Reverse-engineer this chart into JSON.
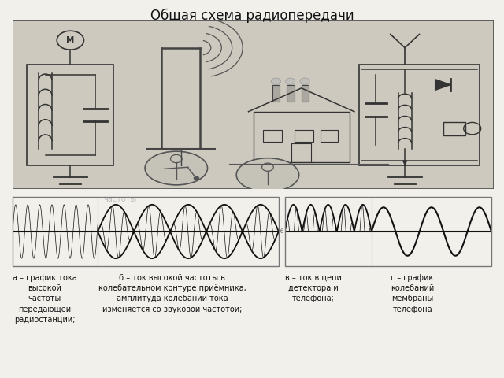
{
  "title": "Общая схема радиопередачи",
  "title_fontsize": 12,
  "bg_color": "#f0efec",
  "top_panel_color": "#d8d5cc",
  "bottom_left_color": "#d5d2ca",
  "bottom_right_color": "#d8d5cc",
  "wave_color": "#111111",
  "caption_a": "а – график тока\nвысокой\nчастоты\nпередающей\nрадиостанции;",
  "caption_b": "б – ток высокой частоты в\nколебательном контуре приёмника,\nамплитуда колебаний тока\nизменяется со звуковой частотой;",
  "caption_v": "в – ток в цепи\nдетектора и\nтелефона;",
  "caption_g": "г – график\nколебаний\nмембраны\nтелефона",
  "caption_fontsize": 7.0,
  "n_points": 4000,
  "high_freq_cycles": 22,
  "low_freq_cycles": 2.5,
  "watermark_text": "частоты"
}
